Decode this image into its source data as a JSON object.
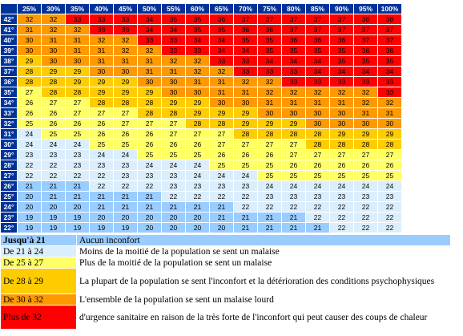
{
  "table": {
    "columns": [
      "25%",
      "30%",
      "35%",
      "40%",
      "45%",
      "50%",
      "55%",
      "60%",
      "65%",
      "70%",
      "75%",
      "80%",
      "85%",
      "90%",
      "95%",
      "100%"
    ],
    "rows": [
      {
        "label": "42°",
        "values": [
          32,
          32,
          33,
          33,
          33,
          34,
          35,
          35,
          36,
          37,
          37,
          37,
          37,
          37,
          38,
          38
        ]
      },
      {
        "label": "41°",
        "values": [
          31,
          32,
          32,
          33,
          33,
          34,
          34,
          35,
          35,
          36,
          36,
          37,
          37,
          37,
          37,
          37
        ]
      },
      {
        "label": "40°",
        "values": [
          30,
          31,
          31,
          32,
          32,
          33,
          33,
          34,
          34,
          35,
          35,
          36,
          36,
          36,
          37,
          37
        ]
      },
      {
        "label": "39°",
        "values": [
          30,
          30,
          31,
          31,
          32,
          32,
          33,
          33,
          34,
          34,
          35,
          35,
          35,
          35,
          36,
          36
        ]
      },
      {
        "label": "38°",
        "values": [
          29,
          30,
          30,
          31,
          31,
          31,
          32,
          32,
          33,
          33,
          34,
          34,
          34,
          35,
          35,
          35
        ]
      },
      {
        "label": "37°",
        "values": [
          28,
          29,
          29,
          30,
          30,
          31,
          31,
          32,
          32,
          33,
          33,
          33,
          34,
          34,
          34,
          34
        ]
      },
      {
        "label": "36°",
        "values": [
          28,
          28,
          29,
          29,
          29,
          30,
          30,
          31,
          31,
          32,
          32,
          33,
          33,
          33,
          33,
          33
        ]
      },
      {
        "label": "35°",
        "values": [
          27,
          28,
          28,
          29,
          29,
          29,
          30,
          30,
          31,
          31,
          32,
          32,
          32,
          32,
          32,
          33
        ]
      },
      {
        "label": "34°",
        "values": [
          26,
          27,
          27,
          28,
          28,
          28,
          29,
          29,
          30,
          30,
          31,
          31,
          31,
          31,
          32,
          32
        ]
      },
      {
        "label": "33°",
        "values": [
          26,
          26,
          27,
          27,
          27,
          28,
          28,
          29,
          29,
          29,
          30,
          30,
          30,
          30,
          31,
          31
        ]
      },
      {
        "label": "32°",
        "values": [
          25,
          26,
          26,
          26,
          27,
          27,
          27,
          28,
          28,
          29,
          29,
          29,
          30,
          30,
          30,
          30
        ]
      },
      {
        "label": "31°",
        "values": [
          24,
          25,
          25,
          26,
          26,
          26,
          27,
          27,
          27,
          28,
          28,
          28,
          28,
          29,
          29,
          29
        ]
      },
      {
        "label": "30°",
        "values": [
          24,
          24,
          24,
          25,
          25,
          26,
          26,
          26,
          27,
          27,
          27,
          27,
          28,
          28,
          28,
          28
        ]
      },
      {
        "label": "29°",
        "values": [
          23,
          23,
          23,
          24,
          24,
          25,
          25,
          25,
          26,
          26,
          26,
          27,
          27,
          27,
          27,
          27
        ]
      },
      {
        "label": "28°",
        "values": [
          22,
          22,
          23,
          23,
          23,
          24,
          24,
          24,
          25,
          25,
          25,
          26,
          26,
          26,
          26,
          26
        ]
      },
      {
        "label": "27°",
        "values": [
          22,
          22,
          22,
          22,
          23,
          23,
          23,
          24,
          24,
          24,
          25,
          25,
          25,
          25,
          25,
          25
        ]
      },
      {
        "label": "26°",
        "values": [
          21,
          21,
          21,
          22,
          22,
          22,
          23,
          23,
          23,
          23,
          24,
          24,
          24,
          24,
          24,
          24
        ]
      },
      {
        "label": "25°",
        "values": [
          20,
          21,
          21,
          21,
          21,
          21,
          22,
          22,
          22,
          22,
          23,
          23,
          23,
          23,
          23,
          23
        ]
      },
      {
        "label": "24°",
        "values": [
          20,
          20,
          20,
          21,
          21,
          21,
          21,
          21,
          21,
          22,
          22,
          22,
          22,
          22,
          22,
          22
        ]
      },
      {
        "label": "23°",
        "values": [
          19,
          19,
          19,
          20,
          20,
          20,
          20,
          20,
          21,
          21,
          21,
          21,
          22,
          22,
          22,
          22
        ]
      },
      {
        "label": "22°",
        "values": [
          19,
          19,
          19,
          19,
          19,
          20,
          20,
          20,
          20,
          21,
          21,
          21,
          21,
          22,
          22,
          22
        ]
      }
    ]
  },
  "legend": [
    {
      "label": "Jusqu'à 21",
      "max": 21,
      "color": "#99ccff",
      "description": "Aucun inconfort"
    },
    {
      "label": "De 21 à 24",
      "min": 21,
      "max": 24,
      "color": "#dbeefd",
      "description": "Moins de la moitié de la population se sent un malaise"
    },
    {
      "label": "De 25 à 27",
      "min": 25,
      "max": 27,
      "color": "#ffff66",
      "description": "Plus de la moitié de la population se sent un malaise"
    },
    {
      "label": "De 28 à 29",
      "min": 28,
      "max": 29,
      "color": "#ffcc00",
      "description": "La plupart de la population se sent l'inconfort et la détérioration des conditions psychophysiques"
    },
    {
      "label": "De 30 à 32",
      "min": 30,
      "max": 32,
      "color": "#ff9900",
      "description": "L'ensemble de la population se sent un malaise lourd"
    },
    {
      "label": "Plus de 32",
      "min": 32,
      "color": "#ff0000",
      "description": "d'urgence sanitaire en raison de la très forte de l'inconfort qui peut causer des coups de chaleur"
    }
  ]
}
